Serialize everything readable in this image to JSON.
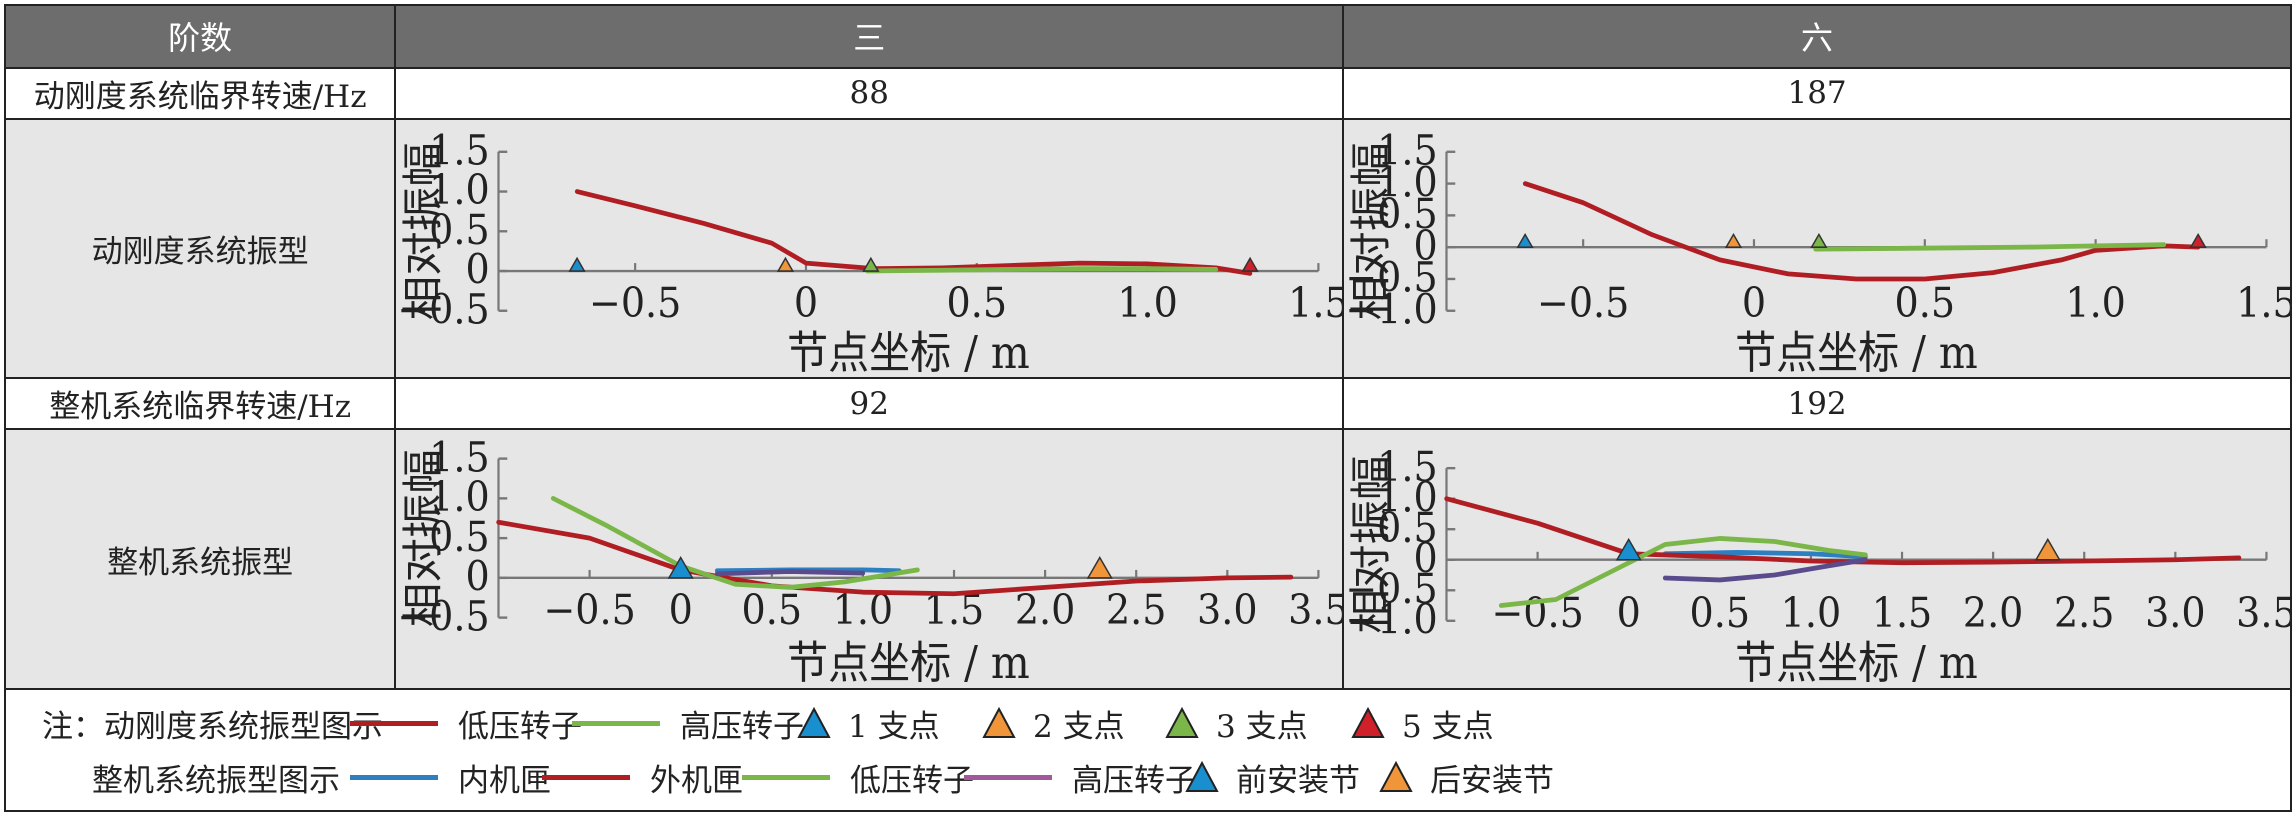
{
  "table": {
    "header": [
      "阶数",
      "三",
      "六"
    ],
    "rows": {
      "dyn_speed": {
        "label": "动刚度系统临界转速/Hz",
        "third": "88",
        "sixth": "187"
      },
      "dyn_mode": {
        "label": "动刚度系统振型"
      },
      "whole_speed": {
        "label": "整机系统临界转速/Hz",
        "third": "92",
        "sixth": "192"
      },
      "whole_mode": {
        "label": "整机系统振型"
      }
    }
  },
  "chart_data": [
    {
      "id": "dyn3",
      "type": "line",
      "xlabel": "节点坐标 / m",
      "ylabel": "相对振幅",
      "xlim": [
        -0.9,
        1.5
      ],
      "ylim": [
        -0.5,
        1.5
      ],
      "xticks": [
        -0.5,
        0,
        0.5,
        1.0,
        1.5
      ],
      "xtick_labels": [
        "−0.5",
        "0",
        "0.5",
        "1.0",
        "1.5"
      ],
      "yticks": [
        -0.5,
        0,
        0.5,
        1.0,
        1.5
      ],
      "ytick_labels": [
        "−0.5",
        "0",
        "0.5",
        "1.0",
        "1.5"
      ],
      "series": [
        {
          "name": "低压转子",
          "color": "#b01e23",
          "x": [
            -0.67,
            -0.5,
            -0.3,
            -0.1,
            0.0,
            0.2,
            0.4,
            0.6,
            0.8,
            1.0,
            1.2,
            1.3
          ],
          "y": [
            1.0,
            0.82,
            0.6,
            0.35,
            0.1,
            0.03,
            0.04,
            0.07,
            0.1,
            0.09,
            0.04,
            -0.03
          ]
        },
        {
          "name": "高压转子",
          "color": "#7ab648",
          "x": [
            0.18,
            0.4,
            0.6,
            0.8,
            1.0,
            1.2
          ],
          "y": [
            0.0,
            0.01,
            0.02,
            0.03,
            0.03,
            0.02
          ]
        }
      ],
      "markers": [
        {
          "label": "1支点",
          "x": -0.67,
          "y": 0,
          "color": "#1a8fd0"
        },
        {
          "label": "2支点",
          "x": -0.06,
          "y": 0,
          "color": "#f0953a"
        },
        {
          "label": "3支点",
          "x": 0.19,
          "y": 0,
          "color": "#7ab648"
        },
        {
          "label": "5支点",
          "x": 1.3,
          "y": 0,
          "color": "#d0202a"
        }
      ]
    },
    {
      "id": "dyn6",
      "type": "line",
      "xlabel": "节点坐标 / m",
      "ylabel": "相对振幅",
      "xlim": [
        -0.9,
        1.5
      ],
      "ylim": [
        -1.0,
        1.5
      ],
      "xticks": [
        -0.5,
        0,
        0.5,
        1.0,
        1.5
      ],
      "xtick_labels": [
        "−0.5",
        "0",
        "0.5",
        "1.0",
        "1.5"
      ],
      "yticks": [
        -1.0,
        -0.5,
        0,
        0.5,
        1.0,
        1.5
      ],
      "ytick_labels": [
        "−1.0",
        "−0.5",
        "0",
        "0.5",
        "1.0",
        "1.5"
      ],
      "series": [
        {
          "name": "低压转子",
          "color": "#b01e23",
          "x": [
            -0.67,
            -0.5,
            -0.3,
            -0.1,
            0.1,
            0.3,
            0.5,
            0.7,
            0.9,
            1.0,
            1.2,
            1.3
          ],
          "y": [
            1.0,
            0.7,
            0.2,
            -0.2,
            -0.42,
            -0.5,
            -0.5,
            -0.4,
            -0.2,
            -0.05,
            0.02,
            0.0
          ]
        },
        {
          "name": "高压转子",
          "color": "#7ab648",
          "x": [
            0.18,
            0.4,
            0.6,
            0.8,
            1.0,
            1.2
          ],
          "y": [
            -0.03,
            -0.02,
            -0.01,
            0.0,
            0.02,
            0.04
          ]
        }
      ],
      "markers": [
        {
          "label": "1支点",
          "x": -0.67,
          "y": 0,
          "color": "#1a8fd0"
        },
        {
          "label": "2支点",
          "x": -0.06,
          "y": 0,
          "color": "#f0953a"
        },
        {
          "label": "3支点",
          "x": 0.19,
          "y": 0,
          "color": "#7ab648"
        },
        {
          "label": "5支点",
          "x": 1.3,
          "y": 0,
          "color": "#d0202a"
        }
      ]
    },
    {
      "id": "whole3",
      "type": "line",
      "xlabel": "节点坐标 / m",
      "ylabel": "相对振幅",
      "xlim": [
        -1.0,
        3.5
      ],
      "ylim": [
        -0.5,
        1.5
      ],
      "xticks": [
        -0.5,
        0,
        0.5,
        1.0,
        1.5,
        2.0,
        2.5,
        3.0,
        3.5
      ],
      "xtick_labels": [
        "−0.5",
        "0",
        "0.5",
        "1.0",
        "1.5",
        "2.0",
        "2.5",
        "3.0",
        "3.5"
      ],
      "yticks": [
        -0.5,
        0,
        0.5,
        1.0,
        1.5
      ],
      "ytick_labels": [
        "−0.5",
        "0",
        "0.5",
        "1.0",
        "1.5"
      ],
      "series": [
        {
          "name": "内机匣",
          "color": "#2e7fc1",
          "x": [
            0.2,
            0.6,
            1.0,
            1.2
          ],
          "y": [
            0.09,
            0.1,
            0.1,
            0.09
          ]
        },
        {
          "name": "外机匣",
          "color": "#b01e23",
          "x": [
            -1.0,
            -0.5,
            0.0,
            0.5,
            1.0,
            1.5,
            2.0,
            2.5,
            3.0,
            3.35
          ],
          "y": [
            0.7,
            0.5,
            0.1,
            -0.1,
            -0.18,
            -0.2,
            -0.12,
            -0.04,
            0.0,
            0.01
          ]
        },
        {
          "name": "低压转子",
          "color": "#7ab648",
          "x": [
            -0.7,
            -0.4,
            0.0,
            0.3,
            0.6,
            0.9,
            1.3
          ],
          "y": [
            1.0,
            0.65,
            0.15,
            -0.08,
            -0.12,
            -0.05,
            0.1
          ]
        },
        {
          "name": "高压转子",
          "color": "#5a4b8c",
          "x": [
            0.2,
            0.6,
            1.0
          ],
          "y": [
            0.05,
            0.08,
            0.06
          ]
        }
      ],
      "markers": [
        {
          "label": "前安装节",
          "x": 0.0,
          "y": 0,
          "color": "#1a8fd0"
        },
        {
          "label": "后安装节",
          "x": 2.3,
          "y": 0,
          "color": "#f0953a"
        }
      ]
    },
    {
      "id": "whole6",
      "type": "line",
      "xlabel": "节点坐标 / m",
      "ylabel": "相对振幅",
      "xlim": [
        -1.0,
        3.5
      ],
      "ylim": [
        -1.0,
        1.5
      ],
      "xticks": [
        -0.5,
        0,
        0.5,
        1.0,
        1.5,
        2.0,
        2.5,
        3.0,
        3.5
      ],
      "xtick_labels": [
        "−0.5",
        "0",
        "0.5",
        "1.0",
        "1.5",
        "2.0",
        "2.5",
        "3.0",
        "3.5"
      ],
      "yticks": [
        -1.0,
        -0.5,
        0,
        0.5,
        1.0,
        1.5
      ],
      "ytick_labels": [
        "−1.0",
        "−0.5",
        "0",
        "0.5",
        "1.0",
        "1.5"
      ],
      "series": [
        {
          "name": "内机匣",
          "color": "#2e7fc1",
          "x": [
            0.2,
            0.6,
            1.0,
            1.3
          ],
          "y": [
            0.1,
            0.12,
            0.1,
            0.05
          ]
        },
        {
          "name": "外机匣",
          "color": "#b01e23",
          "x": [
            -1.0,
            -0.5,
            0.0,
            0.5,
            1.0,
            1.5,
            2.0,
            2.5,
            3.0,
            3.35
          ],
          "y": [
            1.0,
            0.6,
            0.1,
            0.05,
            -0.02,
            -0.05,
            -0.04,
            -0.02,
            0.0,
            0.03
          ]
        },
        {
          "name": "低压转子",
          "color": "#7ab648",
          "x": [
            -0.7,
            -0.4,
            -0.1,
            0.2,
            0.5,
            0.8,
            1.1,
            1.3
          ],
          "y": [
            -0.75,
            -0.65,
            -0.2,
            0.25,
            0.35,
            0.3,
            0.15,
            0.08
          ]
        },
        {
          "name": "高压转子",
          "color": "#5a4b8c",
          "x": [
            0.2,
            0.5,
            0.8,
            1.1,
            1.3
          ],
          "y": [
            -0.3,
            -0.33,
            -0.25,
            -0.1,
            0.0
          ]
        }
      ],
      "markers": [
        {
          "label": "前安装节",
          "x": 0.0,
          "y": 0,
          "color": "#1a8fd0"
        },
        {
          "label": "后安装节",
          "x": 2.3,
          "y": 0,
          "color": "#f0953a"
        }
      ]
    }
  ],
  "legend": {
    "row1": {
      "title": "注：动刚度系统振型图示",
      "items": [
        {
          "kind": "line",
          "label": "低压转子",
          "color": "#b01e23"
        },
        {
          "kind": "line",
          "label": "高压转子",
          "color": "#7ab648"
        },
        {
          "kind": "tri",
          "label": "1 支点",
          "color": "#1a8fd0"
        },
        {
          "kind": "tri",
          "label": "2 支点",
          "color": "#f0953a"
        },
        {
          "kind": "tri",
          "label": "3 支点",
          "color": "#7ab648"
        },
        {
          "kind": "tri",
          "label": "5 支点",
          "color": "#d0202a"
        }
      ]
    },
    "row2": {
      "title": "整机系统振型图示",
      "items": [
        {
          "kind": "line",
          "label": "内机匣",
          "color": "#2e7fc1"
        },
        {
          "kind": "line",
          "label": "外机匣",
          "color": "#b01e23"
        },
        {
          "kind": "line",
          "label": "低压转子",
          "color": "#7ab648"
        },
        {
          "kind": "line",
          "label": "高压转子",
          "color": "#a0599b"
        },
        {
          "kind": "tri",
          "label": "前安装节",
          "color": "#1a8fd0"
        },
        {
          "kind": "tri",
          "label": "后安装节",
          "color": "#f0953a"
        }
      ]
    }
  }
}
